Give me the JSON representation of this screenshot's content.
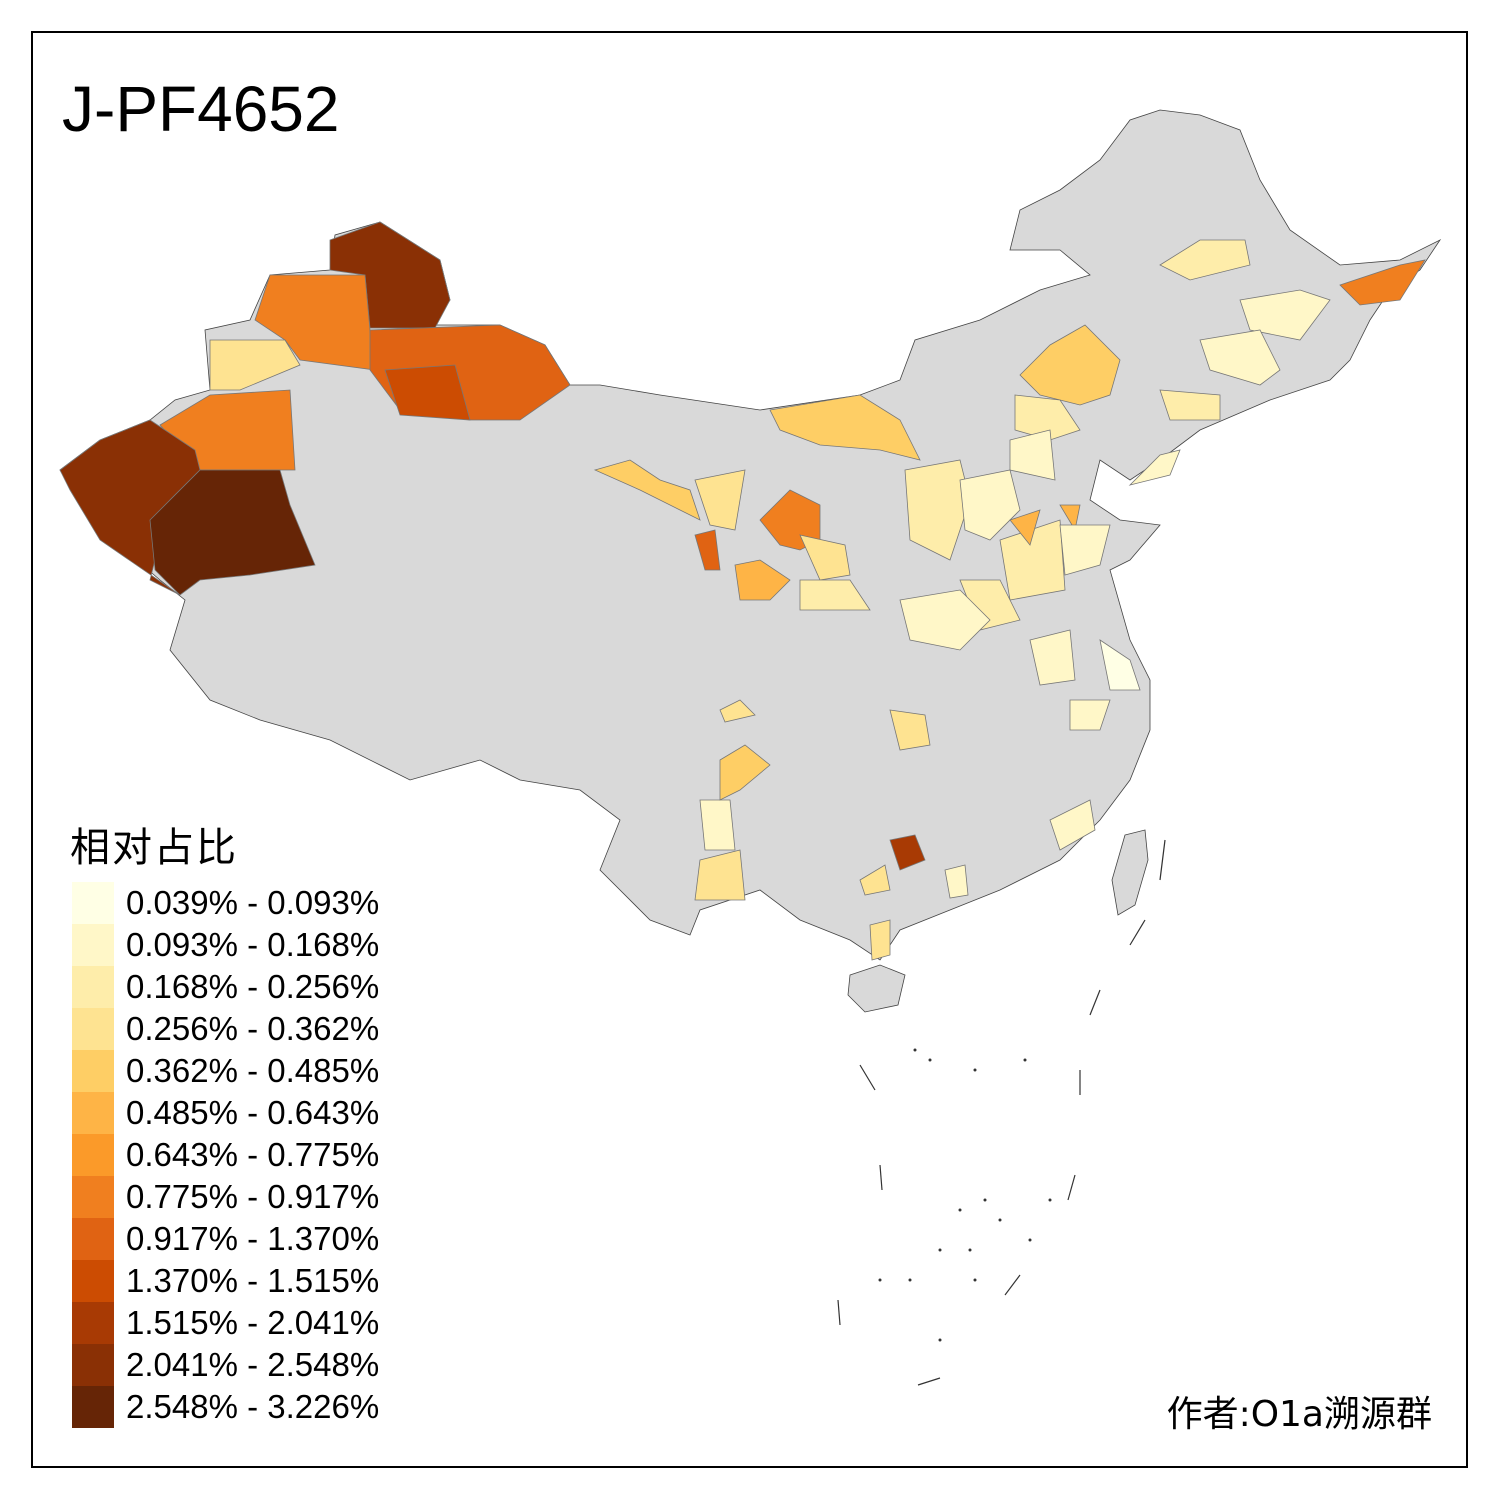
{
  "title": "J-PF4652",
  "legend": {
    "title": "相对占比",
    "classes": [
      {
        "label": "0.039% - 0.093%",
        "color": "#FFFFE5"
      },
      {
        "label": "0.093% - 0.168%",
        "color": "#FFF7C8"
      },
      {
        "label": "0.168% - 0.256%",
        "color": "#FEEDAA"
      },
      {
        "label": "0.256% - 0.362%",
        "color": "#FEE391"
      },
      {
        "label": "0.362% - 0.485%",
        "color": "#FECE65"
      },
      {
        "label": "0.485% - 0.643%",
        "color": "#FEB446"
      },
      {
        "label": "0.643% - 0.775%",
        "color": "#FB9A29"
      },
      {
        "label": "0.775% - 0.917%",
        "color": "#F07F1F"
      },
      {
        "label": "0.917% - 1.370%",
        "color": "#E06313"
      },
      {
        "label": "1.370% - 1.515%",
        "color": "#CC4C02"
      },
      {
        "label": "1.515% - 2.041%",
        "color": "#A83A04"
      },
      {
        "label": "2.041% - 2.548%",
        "color": "#8A3005"
      },
      {
        "label": "2.548% - 3.226%",
        "color": "#662506"
      }
    ]
  },
  "no_data_color": "#D9D9D9",
  "author": "作者:O1a溯源群"
}
